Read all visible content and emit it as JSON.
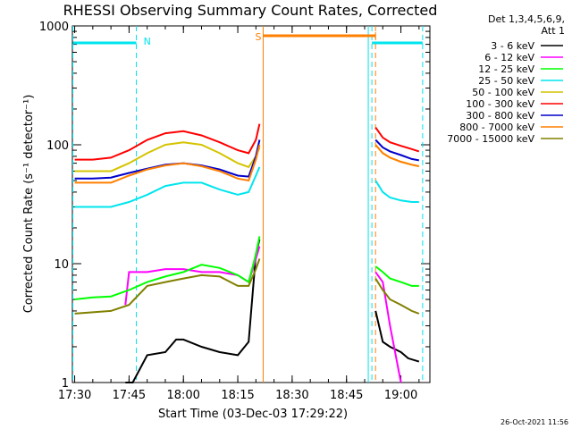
{
  "chart_data": {
    "type": "line",
    "title": "RHESSI Observing Summary Count Rates, Corrected",
    "xlabel": "Start Time (03-Dec-03 17:29:22)",
    "ylabel": "Corrected Count Rate (s⁻¹ detector⁻¹)",
    "y_scale": "log",
    "ylim": [
      1,
      1000
    ],
    "xlim": [
      "17:29:22",
      "19:08:00"
    ],
    "x_ticks": [
      "17:30",
      "17:45",
      "18:00",
      "18:15",
      "18:30",
      "18:45",
      "19:00"
    ],
    "y_ticks": [
      "1",
      "10",
      "100",
      "1000"
    ],
    "legend_title": "Det 1,3,4,5,6,9,",
    "legend_subtitle": "Att 1",
    "legend_placement": "right",
    "timestamp": "26-Oct-2021 11:56",
    "markers": [
      {
        "label": "N",
        "color": "#00e5ee"
      },
      {
        "label": "S",
        "color": "#ff7f00"
      }
    ],
    "series": [
      {
        "name": "3 - 6 keV",
        "color": "#000000",
        "x": [
          "17:44",
          "17:46",
          "17:50",
          "17:55",
          "17:58",
          "18:00",
          "18:05",
          "18:10",
          "18:15",
          "18:18",
          "18:20",
          "18:21"
        ],
        "values": [
          1.0,
          1.0,
          1.7,
          1.8,
          2.3,
          2.3,
          2.0,
          1.8,
          1.7,
          2.2,
          12,
          16
        ],
        "x2": [
          "18:53",
          "18:55",
          "18:57",
          "19:00",
          "19:02",
          "19:05"
        ],
        "values2": [
          4.0,
          2.2,
          2.0,
          1.8,
          1.6,
          1.5
        ]
      },
      {
        "name": "6 - 12 keV",
        "color": "#ff00ff",
        "x": [
          "17:44",
          "17:45",
          "17:50",
          "17:55",
          "18:00",
          "18:05",
          "18:10",
          "18:15",
          "18:18",
          "18:20",
          "18:21"
        ],
        "values": [
          4.5,
          8.5,
          8.5,
          9.0,
          9.0,
          8.5,
          8.5,
          8.0,
          7.0,
          11,
          14
        ],
        "x2": [
          "18:53",
          "18:55",
          "18:57",
          "19:00"
        ],
        "values2": [
          8.5,
          7.0,
          3.0,
          1.0
        ]
      },
      {
        "name": "12 - 25 keV",
        "color": "#00ff00",
        "x": [
          "17:30",
          "17:35",
          "17:40",
          "17:45",
          "17:50",
          "17:55",
          "18:00",
          "18:05",
          "18:10",
          "18:15",
          "18:18",
          "18:20",
          "18:21"
        ],
        "values": [
          5.0,
          5.2,
          5.3,
          6.0,
          7.0,
          7.8,
          8.5,
          9.8,
          9.2,
          8.0,
          7.0,
          12,
          17
        ],
        "x2": [
          "18:53",
          "18:55",
          "18:57",
          "19:00",
          "19:03",
          "19:05"
        ],
        "values2": [
          9.5,
          8.5,
          7.5,
          7.0,
          6.5,
          6.5
        ]
      },
      {
        "name": "25 - 50 keV",
        "color": "#00e5ee",
        "x": [
          "17:30",
          "17:35",
          "17:40",
          "17:45",
          "17:50",
          "17:55",
          "18:00",
          "18:05",
          "18:10",
          "18:15",
          "18:18",
          "18:20",
          "18:21"
        ],
        "values": [
          30,
          30,
          30,
          33,
          38,
          45,
          48,
          48,
          42,
          38,
          40,
          55,
          65
        ],
        "x2": [
          "18:53",
          "18:55",
          "18:57",
          "19:00",
          "19:03",
          "19:05"
        ],
        "values2": [
          50,
          40,
          36,
          34,
          33,
          33
        ]
      },
      {
        "name": "50 - 100 keV",
        "color": "#d4c400",
        "x": [
          "17:30",
          "17:35",
          "17:40",
          "17:45",
          "17:50",
          "17:55",
          "18:00",
          "18:05",
          "18:10",
          "18:15",
          "18:18",
          "18:20",
          "18:21"
        ],
        "values": [
          60,
          60,
          60,
          70,
          85,
          100,
          105,
          100,
          85,
          70,
          65,
          80,
          95
        ],
        "x2": [
          "18:53",
          "18:55",
          "18:57",
          "19:00",
          "19:03",
          "19:05"
        ],
        "values2": [
          100,
          85,
          78,
          72,
          68,
          66
        ]
      },
      {
        "name": "100 - 300 keV",
        "color": "#ff0000",
        "x": [
          "17:30",
          "17:35",
          "17:40",
          "17:45",
          "17:50",
          "17:55",
          "18:00",
          "18:05",
          "18:10",
          "18:15",
          "18:18",
          "18:20",
          "18:21"
        ],
        "values": [
          75,
          75,
          78,
          90,
          110,
          125,
          130,
          120,
          105,
          90,
          85,
          110,
          150
        ],
        "x2": [
          "18:53",
          "18:55",
          "18:57",
          "19:00",
          "19:03",
          "19:05"
        ],
        "values2": [
          140,
          115,
          105,
          98,
          92,
          88
        ]
      },
      {
        "name": "300 - 800 keV",
        "color": "#0000cc",
        "x": [
          "17:30",
          "17:35",
          "17:40",
          "17:45",
          "17:50",
          "17:55",
          "18:00",
          "18:05",
          "18:10",
          "18:15",
          "18:18",
          "18:20",
          "18:21"
        ],
        "values": [
          52,
          52,
          53,
          58,
          63,
          68,
          70,
          67,
          62,
          55,
          54,
          80,
          110
        ],
        "x2": [
          "18:53",
          "18:55",
          "18:57",
          "19:00",
          "19:03",
          "19:05"
        ],
        "values2": [
          110,
          95,
          88,
          82,
          76,
          74
        ]
      },
      {
        "name": "800 - 7000 keV",
        "color": "#ff7f00",
        "x": [
          "17:30",
          "17:35",
          "17:40",
          "17:45",
          "17:50",
          "17:55",
          "18:00",
          "18:05",
          "18:10",
          "18:15",
          "18:18",
          "18:20",
          "18:21"
        ],
        "values": [
          48,
          48,
          48,
          55,
          62,
          67,
          70,
          66,
          60,
          52,
          50,
          75,
          100
        ],
        "x2": [
          "18:53",
          "18:55",
          "18:57",
          "19:00",
          "19:03",
          "19:05"
        ],
        "values2": [
          100,
          85,
          78,
          72,
          68,
          66
        ]
      },
      {
        "name": "7000 - 15000 keV",
        "color": "#808000",
        "x": [
          "17:30",
          "17:35",
          "17:40",
          "17:45",
          "17:50",
          "17:55",
          "18:00",
          "18:05",
          "18:10",
          "18:15",
          "18:18",
          "18:20",
          "18:21"
        ],
        "values": [
          3.8,
          3.9,
          4.0,
          4.5,
          6.5,
          7.0,
          7.5,
          8.0,
          7.8,
          6.5,
          6.5,
          9,
          11
        ],
        "x2": [
          "18:53",
          "18:55",
          "18:57",
          "19:00",
          "19:03",
          "19:05"
        ],
        "values2": [
          7.5,
          6.0,
          5.0,
          4.5,
          4.0,
          3.8
        ]
      }
    ]
  }
}
